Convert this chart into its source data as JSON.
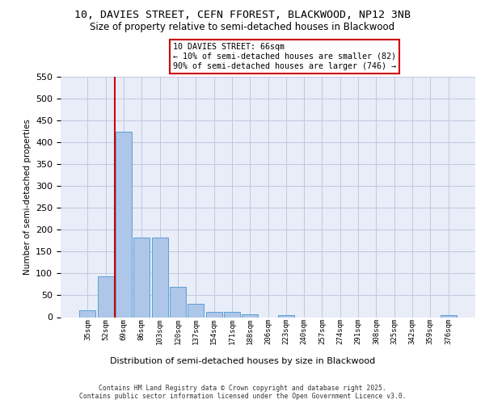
{
  "title_line1": "10, DAVIES STREET, CEFN FFOREST, BLACKWOOD, NP12 3NB",
  "title_line2": "Size of property relative to semi-detached houses in Blackwood",
  "xlabel": "Distribution of semi-detached houses by size in Blackwood",
  "ylabel": "Number of semi-detached properties",
  "categories": [
    "35sqm",
    "52sqm",
    "69sqm",
    "86sqm",
    "103sqm",
    "120sqm",
    "137sqm",
    "154sqm",
    "171sqm",
    "188sqm",
    "206sqm",
    "223sqm",
    "240sqm",
    "257sqm",
    "274sqm",
    "291sqm",
    "308sqm",
    "325sqm",
    "342sqm",
    "359sqm",
    "376sqm"
  ],
  "bar_values": [
    15,
    93,
    425,
    183,
    183,
    70,
    30,
    12,
    12,
    6,
    0,
    5,
    0,
    0,
    0,
    0,
    0,
    0,
    0,
    0,
    5
  ],
  "bar_color": "#aec6e8",
  "bar_edge_color": "#5a9fd4",
  "background_color": "#e8edf8",
  "grid_color": "#c0c8e0",
  "vline_x": 1.5,
  "vline_color": "#cc0000",
  "annotation_title": "10 DAVIES STREET: 66sqm",
  "annotation_line1": "← 10% of semi-detached houses are smaller (82)",
  "annotation_line2": "90% of semi-detached houses are larger (746) →",
  "annotation_box_color": "white",
  "annotation_box_edge": "#cc0000",
  "ylim_max": 550,
  "yticks": [
    0,
    50,
    100,
    150,
    200,
    250,
    300,
    350,
    400,
    450,
    500,
    550
  ],
  "footer_line1": "Contains HM Land Registry data © Crown copyright and database right 2025.",
  "footer_line2": "Contains public sector information licensed under the Open Government Licence v3.0."
}
